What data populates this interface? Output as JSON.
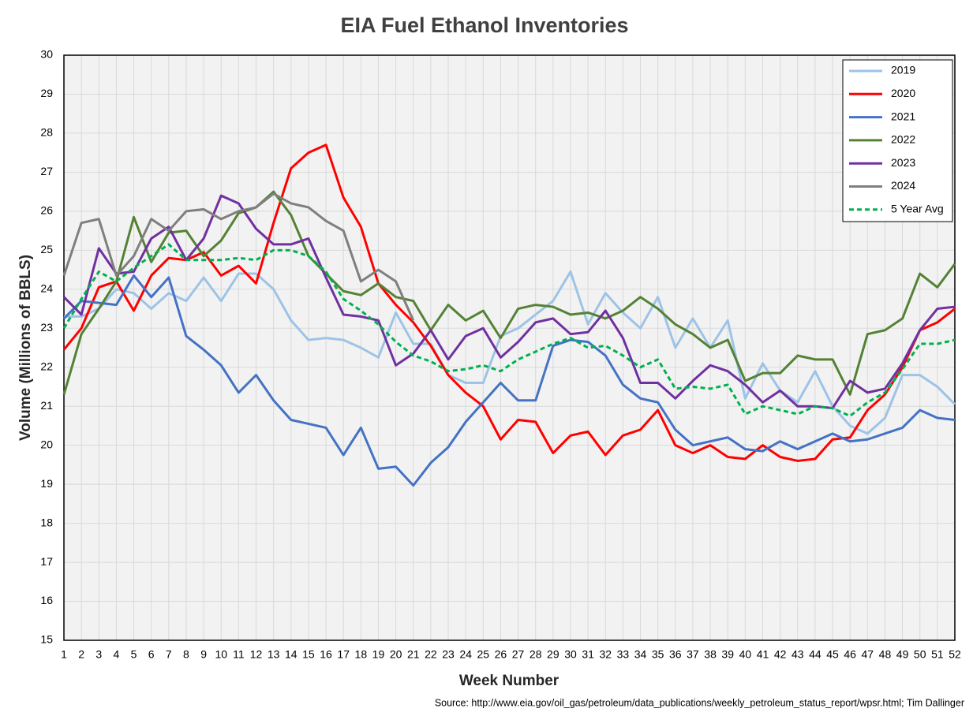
{
  "chart_data": {
    "type": "line",
    "title": "EIA Fuel Ethanol Inventories",
    "xlabel": "Week Number",
    "ylabel": "Volume (Millions of BBLS)",
    "source": "Source: http://www.eia.gov/oil_gas/petroleum/data_publications/weekly_petroleum_status_report/wpsr.html; Tim Dallinger",
    "x": [
      1,
      2,
      3,
      4,
      5,
      6,
      7,
      8,
      9,
      10,
      11,
      12,
      13,
      14,
      15,
      16,
      17,
      18,
      19,
      20,
      21,
      22,
      23,
      24,
      25,
      26,
      27,
      28,
      29,
      30,
      31,
      32,
      33,
      34,
      35,
      36,
      37,
      38,
      39,
      40,
      41,
      42,
      43,
      44,
      45,
      46,
      47,
      48,
      49,
      50,
      51,
      52
    ],
    "xlim": [
      1,
      52
    ],
    "xticks": [
      1,
      2,
      3,
      4,
      5,
      6,
      7,
      8,
      9,
      10,
      11,
      12,
      13,
      14,
      15,
      16,
      17,
      18,
      19,
      20,
      21,
      22,
      23,
      24,
      25,
      26,
      27,
      28,
      29,
      30,
      31,
      32,
      33,
      34,
      35,
      36,
      37,
      38,
      39,
      40,
      41,
      42,
      43,
      44,
      45,
      46,
      47,
      48,
      49,
      50,
      51,
      52
    ],
    "ylim": [
      15,
      30
    ],
    "yticks": [
      15,
      16,
      17,
      18,
      19,
      20,
      21,
      22,
      23,
      24,
      25,
      26,
      27,
      28,
      29,
      30
    ],
    "grid": true,
    "legend": "upper right",
    "series": [
      {
        "name": "2019",
        "color": "#9dc3e6",
        "style": "solid",
        "values": [
          23.3,
          23.3,
          23.5,
          24.0,
          23.9,
          23.5,
          23.9,
          23.7,
          24.3,
          23.7,
          24.4,
          24.4,
          24.0,
          23.2,
          22.7,
          22.75,
          22.7,
          22.5,
          22.25,
          23.4,
          22.6,
          22.6,
          21.8,
          21.6,
          21.6,
          22.8,
          23.0,
          23.35,
          23.7,
          24.45,
          23.1,
          23.9,
          23.4,
          23.0,
          23.8,
          22.5,
          23.25,
          22.5,
          23.2,
          21.2,
          22.1,
          21.4,
          21.1,
          21.9,
          21.0,
          20.5,
          20.3,
          20.7,
          21.8,
          21.8,
          21.5,
          21.05
        ]
      },
      {
        "name": "2020",
        "color": "#ff0000",
        "style": "solid",
        "values": [
          22.45,
          23.0,
          24.05,
          24.2,
          23.45,
          24.35,
          24.8,
          24.75,
          24.95,
          24.35,
          24.6,
          24.15,
          25.7,
          27.1,
          27.5,
          27.7,
          26.35,
          25.6,
          24.15,
          23.6,
          23.15,
          22.55,
          21.8,
          21.35,
          21.0,
          20.15,
          20.65,
          20.6,
          19.8,
          20.25,
          20.35,
          19.75,
          20.25,
          20.4,
          20.9,
          20.0,
          19.8,
          20.0,
          19.7,
          19.65,
          20.0,
          19.7,
          19.6,
          19.65,
          20.15,
          20.2,
          20.9,
          21.3,
          22.0,
          22.95,
          23.15,
          23.5
        ]
      },
      {
        "name": "2021",
        "color": "#4472c4",
        "style": "solid",
        "values": [
          23.25,
          23.7,
          23.65,
          23.6,
          24.35,
          23.8,
          24.3,
          22.8,
          22.45,
          22.05,
          21.35,
          21.8,
          21.15,
          20.65,
          20.55,
          20.45,
          19.75,
          20.45,
          19.4,
          19.45,
          18.97,
          19.55,
          19.95,
          20.6,
          21.1,
          21.6,
          21.15,
          21.15,
          22.55,
          22.7,
          22.65,
          22.3,
          21.55,
          21.2,
          21.1,
          20.4,
          20.0,
          20.1,
          20.2,
          19.9,
          19.85,
          20.1,
          19.9,
          20.1,
          20.3,
          20.1,
          20.15,
          20.3,
          20.45,
          20.9,
          20.7,
          20.65
        ]
      },
      {
        "name": "2022",
        "color": "#548235",
        "style": "solid",
        "values": [
          21.3,
          22.85,
          23.5,
          24.2,
          25.85,
          24.7,
          25.45,
          25.5,
          24.85,
          25.25,
          25.95,
          26.1,
          26.5,
          25.9,
          24.85,
          24.4,
          23.95,
          23.85,
          24.15,
          23.8,
          23.7,
          22.95,
          23.6,
          23.2,
          23.45,
          22.75,
          23.5,
          23.6,
          23.55,
          23.35,
          23.4,
          23.25,
          23.45,
          23.8,
          23.5,
          23.1,
          22.85,
          22.5,
          22.7,
          21.65,
          21.85,
          21.85,
          22.3,
          22.2,
          22.2,
          21.3,
          22.85,
          22.95,
          23.25,
          24.4,
          24.05,
          24.65
        ]
      },
      {
        "name": "2023",
        "color": "#7030a0",
        "style": "solid",
        "values": [
          23.8,
          23.35,
          25.05,
          24.4,
          24.45,
          25.3,
          25.6,
          24.75,
          25.3,
          26.4,
          26.2,
          25.55,
          25.15,
          25.15,
          25.3,
          24.3,
          23.35,
          23.3,
          23.2,
          22.05,
          22.35,
          22.95,
          22.2,
          22.8,
          23.0,
          22.25,
          22.65,
          23.15,
          23.25,
          22.85,
          22.9,
          23.45,
          22.75,
          21.6,
          21.6,
          21.2,
          21.65,
          22.05,
          21.9,
          21.55,
          21.1,
          21.4,
          21.0,
          21.0,
          20.95,
          21.65,
          21.35,
          21.45,
          22.1,
          22.95,
          23.5,
          23.55
        ]
      },
      {
        "name": "2024",
        "color": "#7f7f7f",
        "style": "solid",
        "values": [
          24.35,
          25.7,
          25.8,
          24.35,
          24.85,
          25.8,
          25.5,
          26.0,
          26.05,
          25.8,
          26.0,
          26.1,
          26.45,
          26.2,
          26.1,
          25.75,
          25.5,
          24.2,
          24.5,
          24.2,
          23.2,
          null,
          null,
          null,
          null,
          null,
          null,
          null,
          null,
          null,
          null,
          null,
          null,
          null,
          null,
          null,
          null,
          null,
          null,
          null,
          null,
          null,
          null,
          null,
          null,
          null,
          null,
          null,
          null,
          null,
          null,
          null
        ]
      },
      {
        "name": "5 Year Avg",
        "color": "#00b050",
        "style": "dashed",
        "values": [
          23.0,
          23.75,
          24.45,
          24.2,
          24.55,
          24.85,
          25.15,
          24.75,
          24.75,
          24.75,
          24.8,
          24.75,
          25.0,
          25.0,
          24.85,
          24.45,
          23.75,
          23.45,
          23.1,
          22.65,
          22.3,
          22.15,
          21.9,
          21.95,
          22.05,
          21.9,
          22.2,
          22.4,
          22.6,
          22.75,
          22.5,
          22.55,
          22.3,
          22.0,
          22.2,
          21.45,
          21.5,
          21.45,
          21.55,
          20.8,
          21.0,
          20.9,
          20.8,
          21.0,
          20.95,
          20.75,
          21.1,
          21.35,
          21.95,
          22.6,
          22.6,
          22.7
        ]
      }
    ]
  }
}
